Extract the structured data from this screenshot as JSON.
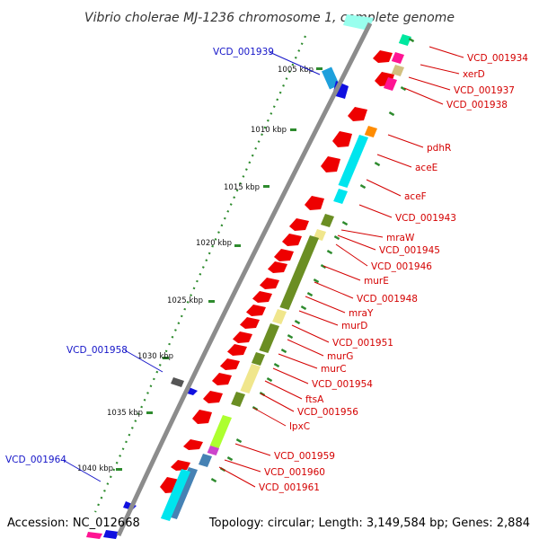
{
  "title": "Vibrio cholerae MJ-1236 chromosome 1, complete genome",
  "footer": {
    "accession": "Accession: NC_012668",
    "summary": "Topology: circular; Length: 3,149,584 bp; Genes: 2,884"
  },
  "colors": {
    "backbone": "#8c8c8c",
    "ticks": "#2e8b2e",
    "gene_red": "#ee0000",
    "label_red": "#d40000",
    "label_blue": "#1414c8",
    "cyan": "#00e5ee",
    "olive": "#6b8e23",
    "khaki": "#f0e68c",
    "pink": "#ff1493",
    "lime": "#adff2f"
  },
  "tick_labels": [
    "1005 kbp",
    "1010 kbp",
    "1015 kbp",
    "1020 kbp",
    "1025 kbp",
    "1030 kbp",
    "1035 kbp",
    "1040 kbp"
  ],
  "left_labels": [
    "VCD_001939",
    "VCD_001958",
    "VCD_001964"
  ],
  "right_labels": [
    "VCD_001934",
    "xerD",
    "VCD_001937",
    "VCD_001938",
    "pdhR",
    "aceE",
    "aceF",
    "VCD_001943",
    "mraW",
    "VCD_001945",
    "VCD_001946",
    "murE",
    "VCD_001948",
    "mraY",
    "murD",
    "VCD_001951",
    "murG",
    "murC",
    "VCD_001954",
    "ftsA",
    "VCD_001956",
    "lpxC",
    "VCD_001959",
    "VCD_001960",
    "VCD_001961"
  ]
}
